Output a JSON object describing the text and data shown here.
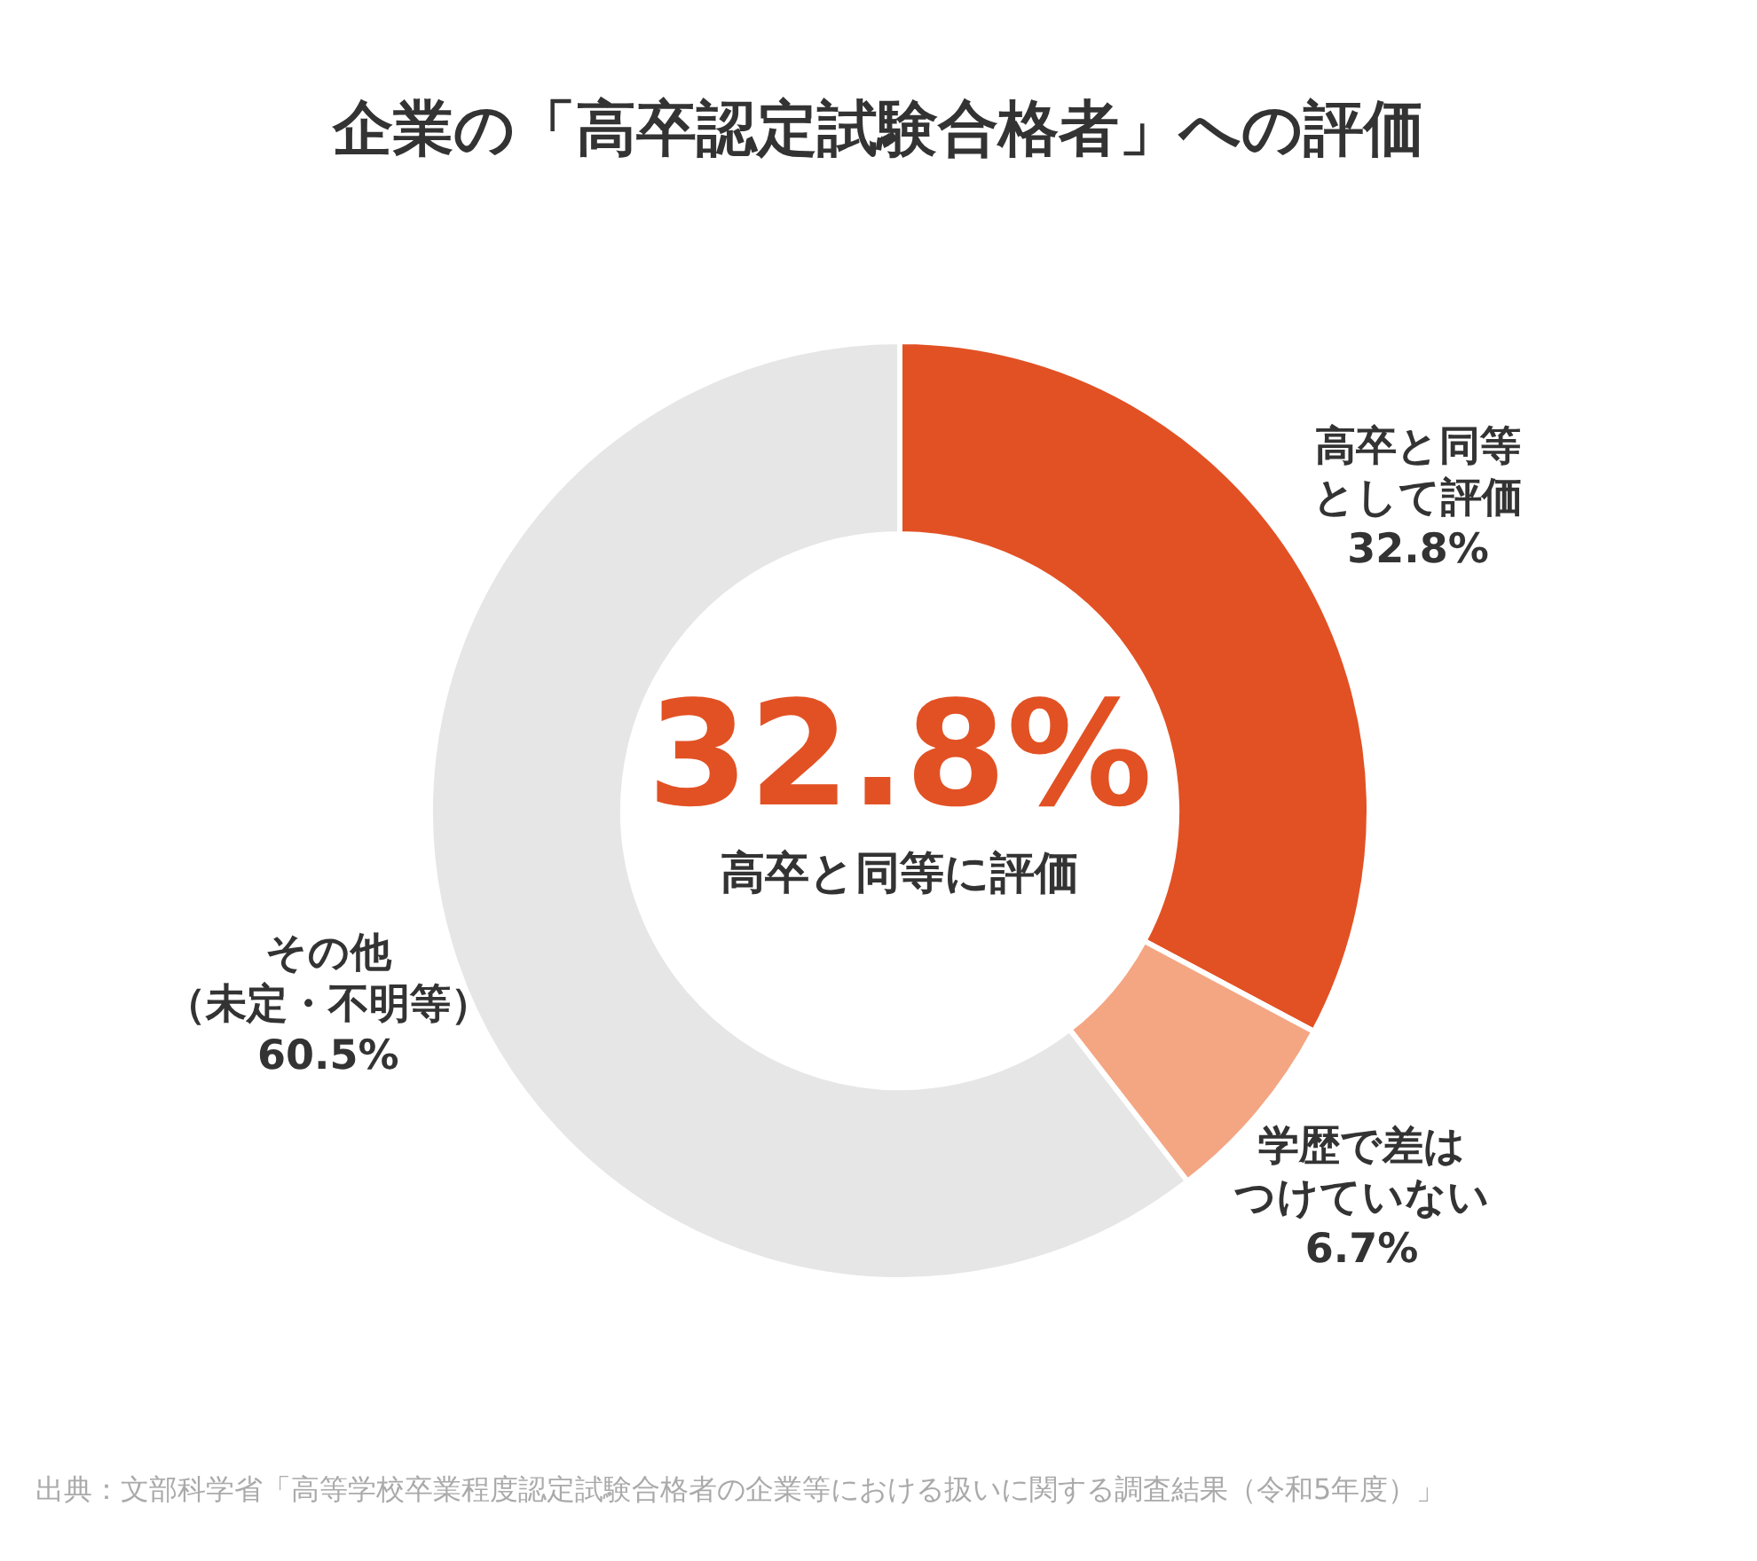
{
  "chart_data": {
    "type": "donut",
    "title": "企業の「高卒認定試験合格者」への評価",
    "categories": [
      "高卒と同等として評価",
      "学歴で差はつけていない",
      "その他（未定・不明等）"
    ],
    "values": [
      32.8,
      6.7,
      60.5
    ],
    "colors": [
      "#e25124",
      "#f4a683",
      "#e6e6e6"
    ],
    "value_labels": [
      "32.8%",
      "6.7%",
      "60.5%"
    ],
    "annotations": [
      "32.8%",
      "高卒と同等に評価",
      "出典：文部科学省「高等学校卒業程度認定試験合格者の企業等における扱いに関する調査結果（令和5年度）」"
    ]
  }
}
